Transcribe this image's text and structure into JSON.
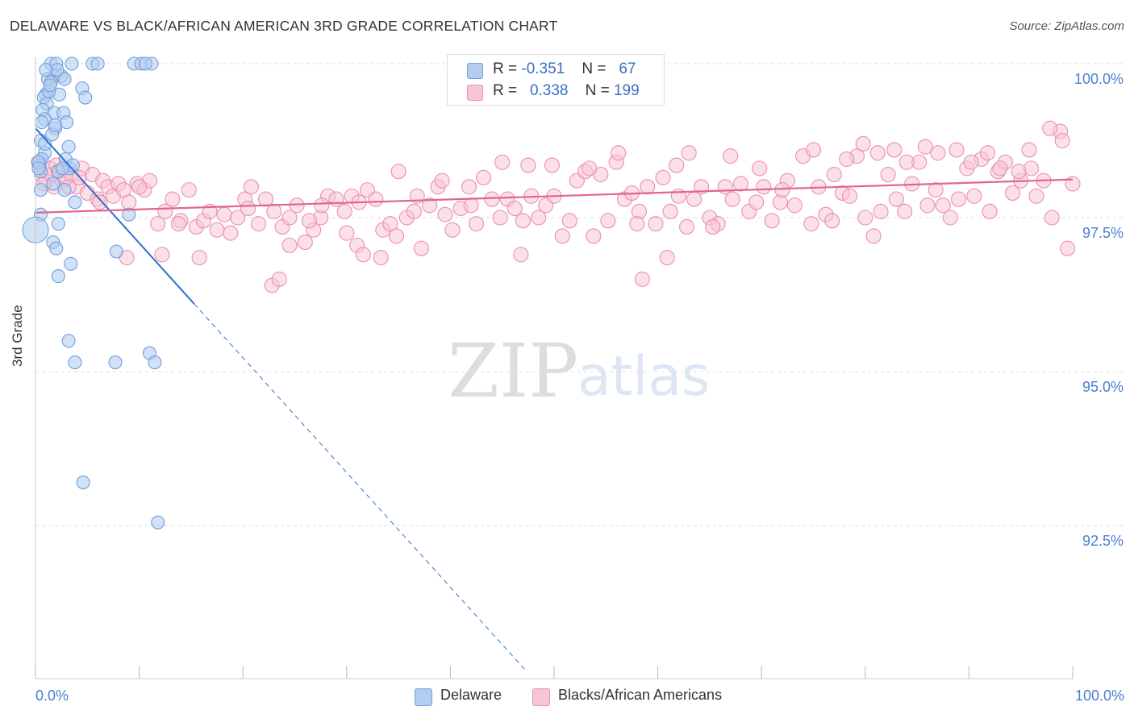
{
  "title": "DELAWARE VS BLACK/AFRICAN AMERICAN 3RD GRADE CORRELATION CHART",
  "source": "Source: ZipAtlas.com",
  "watermark": {
    "zip": "ZIP",
    "atlas": "atlas"
  },
  "legend_top": {
    "row1": {
      "r_label": "R = ",
      "r_value": "-0.351",
      "n_label": "N = ",
      "n_value": "67"
    },
    "row2": {
      "r_label": "R = ",
      "r_value": "0.338",
      "n_label": "N = ",
      "n_value": "199"
    }
  },
  "legend_bottom": {
    "delaware": "Delaware",
    "black": "Blacks/African Americans"
  },
  "colors": {
    "blue": "#6f9fe0",
    "blue_fill": "#b3cdf0",
    "blue_line": "#2f6fd0",
    "pink": "#eb8fac",
    "pink_fill": "#f7c6d6",
    "pink_line": "#e0668f",
    "axis_text": "#4a7fcf",
    "grid": "#dddddd"
  },
  "chart_data": {
    "type": "scatter",
    "title": "DELAWARE VS BLACK/AFRICAN AMERICAN 3RD GRADE CORRELATION CHART",
    "xlabel": "",
    "ylabel": "3rd Grade",
    "xlim": [
      0,
      100
    ],
    "ylim": [
      90.0,
      100.5
    ],
    "x_tick_labels": [
      "0.0%",
      "100.0%"
    ],
    "y_ticks": [
      {
        "value": 100.0,
        "label": "100.0%"
      },
      {
        "value": 97.5,
        "label": "97.5%"
      },
      {
        "value": 95.0,
        "label": "95.0%"
      },
      {
        "value": 92.5,
        "label": "92.5%"
      }
    ],
    "grid": true,
    "series": [
      {
        "name": "Delaware",
        "r": -0.351,
        "n": 67,
        "trend": {
          "x0": 0,
          "y0": 98.95,
          "x1": 15.3,
          "y1": 96.1,
          "dash_to_x": 47.2
        },
        "points": [
          [
            1.5,
            100.0
          ],
          [
            2.0,
            100.0
          ],
          [
            3.5,
            100.0
          ],
          [
            5.5,
            100.0
          ],
          [
            6.0,
            100.0
          ],
          [
            9.5,
            100.0
          ],
          [
            10.2,
            100.0
          ],
          [
            11.2,
            100.0
          ],
          [
            1.8,
            99.8
          ],
          [
            2.5,
            99.8
          ],
          [
            1.2,
            99.75
          ],
          [
            2.8,
            99.75
          ],
          [
            1.5,
            99.7
          ],
          [
            4.5,
            99.6
          ],
          [
            1.0,
            99.5
          ],
          [
            2.3,
            99.5
          ],
          [
            0.8,
            99.45
          ],
          [
            4.8,
            99.45
          ],
          [
            1.1,
            99.35
          ],
          [
            0.7,
            99.25
          ],
          [
            1.8,
            99.2
          ],
          [
            2.7,
            99.2
          ],
          [
            0.9,
            99.1
          ],
          [
            0.6,
            99.05
          ],
          [
            1.9,
            98.95
          ],
          [
            0.5,
            98.75
          ],
          [
            3.2,
            98.65
          ],
          [
            0.9,
            98.55
          ],
          [
            0.6,
            98.45
          ],
          [
            2.9,
            98.45
          ],
          [
            0.4,
            98.35
          ],
          [
            3.3,
            98.3
          ],
          [
            0.5,
            98.25
          ],
          [
            2.2,
            98.25
          ],
          [
            1.7,
            98.05
          ],
          [
            0.5,
            97.95
          ],
          [
            2.8,
            97.95
          ],
          [
            3.8,
            97.75
          ],
          [
            0.5,
            97.55
          ],
          [
            9.0,
            97.55
          ],
          [
            0.0,
            97.3
          ],
          [
            2.2,
            97.4
          ],
          [
            1.7,
            97.1
          ],
          [
            2.0,
            97.0
          ],
          [
            7.8,
            96.95
          ],
          [
            3.4,
            96.75
          ],
          [
            2.2,
            96.55
          ],
          [
            3.2,
            95.5
          ],
          [
            11.0,
            95.3
          ],
          [
            3.8,
            95.15
          ],
          [
            7.7,
            95.15
          ],
          [
            11.5,
            95.15
          ],
          [
            4.6,
            93.2
          ],
          [
            11.8,
            92.55
          ],
          [
            0.3,
            98.4
          ],
          [
            1.3,
            99.55
          ],
          [
            1.4,
            99.65
          ],
          [
            2.1,
            99.9
          ],
          [
            0.9,
            98.7
          ],
          [
            3.0,
            99.05
          ],
          [
            3.6,
            98.35
          ],
          [
            2.6,
            98.3
          ],
          [
            1.6,
            98.85
          ],
          [
            0.3,
            98.3
          ],
          [
            1.0,
            99.9
          ],
          [
            10.6,
            100.0
          ],
          [
            1.9,
            99.0
          ]
        ]
      },
      {
        "name": "Blacks/African Americans",
        "r": 0.338,
        "n": 199,
        "trend": {
          "x0": 0,
          "y0": 97.58,
          "x1": 100,
          "y1": 98.12
        },
        "points": [
          [
            0.3,
            98.4
          ],
          [
            0.6,
            98.2
          ],
          [
            1.0,
            98.1
          ],
          [
            1.4,
            98.3
          ],
          [
            1.8,
            98.0
          ],
          [
            2.2,
            98.25
          ],
          [
            2.6,
            98.1
          ],
          [
            3.0,
            98.15
          ],
          [
            3.5,
            98.2
          ],
          [
            4.0,
            98.0
          ],
          [
            4.5,
            98.3
          ],
          [
            5.0,
            97.9
          ],
          [
            5.5,
            98.2
          ],
          [
            6.0,
            97.8
          ],
          [
            6.5,
            98.1
          ],
          [
            7.0,
            98.0
          ],
          [
            7.5,
            97.85
          ],
          [
            8.0,
            98.05
          ],
          [
            8.5,
            97.95
          ],
          [
            9.0,
            97.75
          ],
          [
            9.8,
            98.05
          ],
          [
            10.5,
            97.95
          ],
          [
            11.0,
            98.1
          ],
          [
            11.8,
            97.4
          ],
          [
            12.5,
            97.6
          ],
          [
            13.2,
            97.8
          ],
          [
            14.0,
            97.45
          ],
          [
            14.8,
            97.95
          ],
          [
            15.5,
            97.35
          ],
          [
            16.2,
            97.45
          ],
          [
            16.8,
            97.6
          ],
          [
            17.5,
            97.3
          ],
          [
            18.2,
            97.55
          ],
          [
            18.8,
            97.25
          ],
          [
            19.5,
            97.5
          ],
          [
            20.2,
            97.8
          ],
          [
            20.8,
            98.0
          ],
          [
            21.5,
            97.4
          ],
          [
            22.2,
            97.8
          ],
          [
            23.0,
            97.6
          ],
          [
            23.8,
            97.35
          ],
          [
            24.5,
            97.5
          ],
          [
            25.2,
            97.7
          ],
          [
            26.0,
            97.1
          ],
          [
            26.8,
            97.3
          ],
          [
            27.5,
            97.5
          ],
          [
            28.2,
            97.85
          ],
          [
            29.0,
            97.8
          ],
          [
            29.8,
            97.6
          ],
          [
            30.5,
            97.85
          ],
          [
            31.2,
            97.75
          ],
          [
            32.0,
            97.95
          ],
          [
            32.8,
            97.8
          ],
          [
            33.5,
            97.3
          ],
          [
            34.2,
            97.4
          ],
          [
            35.0,
            98.25
          ],
          [
            35.8,
            97.5
          ],
          [
            36.5,
            97.6
          ],
          [
            37.2,
            97.0
          ],
          [
            38.0,
            97.7
          ],
          [
            38.8,
            98.0
          ],
          [
            39.5,
            97.55
          ],
          [
            40.2,
            97.3
          ],
          [
            41.0,
            97.65
          ],
          [
            41.8,
            98.0
          ],
          [
            42.5,
            97.4
          ],
          [
            43.2,
            98.15
          ],
          [
            44.0,
            97.8
          ],
          [
            44.8,
            97.5
          ],
          [
            45.5,
            97.8
          ],
          [
            46.2,
            97.65
          ],
          [
            47.0,
            97.45
          ],
          [
            47.8,
            97.85
          ],
          [
            48.5,
            97.5
          ],
          [
            49.2,
            97.7
          ],
          [
            50.0,
            97.85
          ],
          [
            50.8,
            97.2
          ],
          [
            51.5,
            97.45
          ],
          [
            52.2,
            98.1
          ],
          [
            53.0,
            98.25
          ],
          [
            53.8,
            97.2
          ],
          [
            54.5,
            98.2
          ],
          [
            55.2,
            97.45
          ],
          [
            56.0,
            98.4
          ],
          [
            56.8,
            97.8
          ],
          [
            57.5,
            97.9
          ],
          [
            58.2,
            97.6
          ],
          [
            59.0,
            98.0
          ],
          [
            59.8,
            97.4
          ],
          [
            60.5,
            98.15
          ],
          [
            61.2,
            97.6
          ],
          [
            62.0,
            97.85
          ],
          [
            62.8,
            97.35
          ],
          [
            63.5,
            97.8
          ],
          [
            64.2,
            98.0
          ],
          [
            65.0,
            97.5
          ],
          [
            65.8,
            97.4
          ],
          [
            66.5,
            98.0
          ],
          [
            67.2,
            97.8
          ],
          [
            68.0,
            98.05
          ],
          [
            68.8,
            97.6
          ],
          [
            69.5,
            97.75
          ],
          [
            70.2,
            98.0
          ],
          [
            71.0,
            97.45
          ],
          [
            71.8,
            97.75
          ],
          [
            72.5,
            98.1
          ],
          [
            73.2,
            97.7
          ],
          [
            74.0,
            98.5
          ],
          [
            74.8,
            97.4
          ],
          [
            75.5,
            98.0
          ],
          [
            76.2,
            97.55
          ],
          [
            77.0,
            98.2
          ],
          [
            77.8,
            97.9
          ],
          [
            78.5,
            97.85
          ],
          [
            79.2,
            98.5
          ],
          [
            80.0,
            97.5
          ],
          [
            80.8,
            97.2
          ],
          [
            81.5,
            97.6
          ],
          [
            82.2,
            98.2
          ],
          [
            83.0,
            97.8
          ],
          [
            83.8,
            97.6
          ],
          [
            84.5,
            98.05
          ],
          [
            85.2,
            98.4
          ],
          [
            86.0,
            97.7
          ],
          [
            86.8,
            97.95
          ],
          [
            87.5,
            97.7
          ],
          [
            88.2,
            97.5
          ],
          [
            89.0,
            97.8
          ],
          [
            89.8,
            98.3
          ],
          [
            90.5,
            97.85
          ],
          [
            91.2,
            98.45
          ],
          [
            92.0,
            97.6
          ],
          [
            92.8,
            98.25
          ],
          [
            93.5,
            98.4
          ],
          [
            94.2,
            97.9
          ],
          [
            95.0,
            98.1
          ],
          [
            95.8,
            98.6
          ],
          [
            96.5,
            97.85
          ],
          [
            97.2,
            98.1
          ],
          [
            98.0,
            97.5
          ],
          [
            98.8,
            98.9
          ],
          [
            99.5,
            97.0
          ],
          [
            0.8,
            98.05
          ],
          [
            1.5,
            98.2
          ],
          [
            2.0,
            98.35
          ],
          [
            3.2,
            98.0
          ],
          [
            4.2,
            98.15
          ],
          [
            6.2,
            97.75
          ],
          [
            8.8,
            96.85
          ],
          [
            12.2,
            96.9
          ],
          [
            15.8,
            96.85
          ],
          [
            22.8,
            96.4
          ],
          [
            23.5,
            96.5
          ],
          [
            24.5,
            97.05
          ],
          [
            31.0,
            97.05
          ],
          [
            31.6,
            96.9
          ],
          [
            33.3,
            96.85
          ],
          [
            46.8,
            96.9
          ],
          [
            58.5,
            96.5
          ],
          [
            60.9,
            96.85
          ],
          [
            27.6,
            97.7
          ],
          [
            30.0,
            97.25
          ],
          [
            36.8,
            97.85
          ],
          [
            39.2,
            98.1
          ],
          [
            42.0,
            97.7
          ],
          [
            45.0,
            98.4
          ],
          [
            47.5,
            98.35
          ],
          [
            49.8,
            98.35
          ],
          [
            53.4,
            98.3
          ],
          [
            56.2,
            98.55
          ],
          [
            58.0,
            97.4
          ],
          [
            61.8,
            98.35
          ],
          [
            63.0,
            98.55
          ],
          [
            65.3,
            97.35
          ],
          [
            67.0,
            98.5
          ],
          [
            69.8,
            98.3
          ],
          [
            72.0,
            97.95
          ],
          [
            75.0,
            98.6
          ],
          [
            76.8,
            97.45
          ],
          [
            78.2,
            98.45
          ],
          [
            79.8,
            98.7
          ],
          [
            81.2,
            98.55
          ],
          [
            82.8,
            98.6
          ],
          [
            84.0,
            98.4
          ],
          [
            85.8,
            98.65
          ],
          [
            87.0,
            98.55
          ],
          [
            88.8,
            98.6
          ],
          [
            90.2,
            98.4
          ],
          [
            91.8,
            98.55
          ],
          [
            93.0,
            98.3
          ],
          [
            94.8,
            98.25
          ],
          [
            96.0,
            98.3
          ],
          [
            97.8,
            98.95
          ],
          [
            99.0,
            98.75
          ],
          [
            100.0,
            98.05
          ],
          [
            10.0,
            98.0
          ],
          [
            13.8,
            97.4
          ],
          [
            20.5,
            97.65
          ],
          [
            26.4,
            97.45
          ],
          [
            34.8,
            97.2
          ]
        ]
      }
    ]
  }
}
